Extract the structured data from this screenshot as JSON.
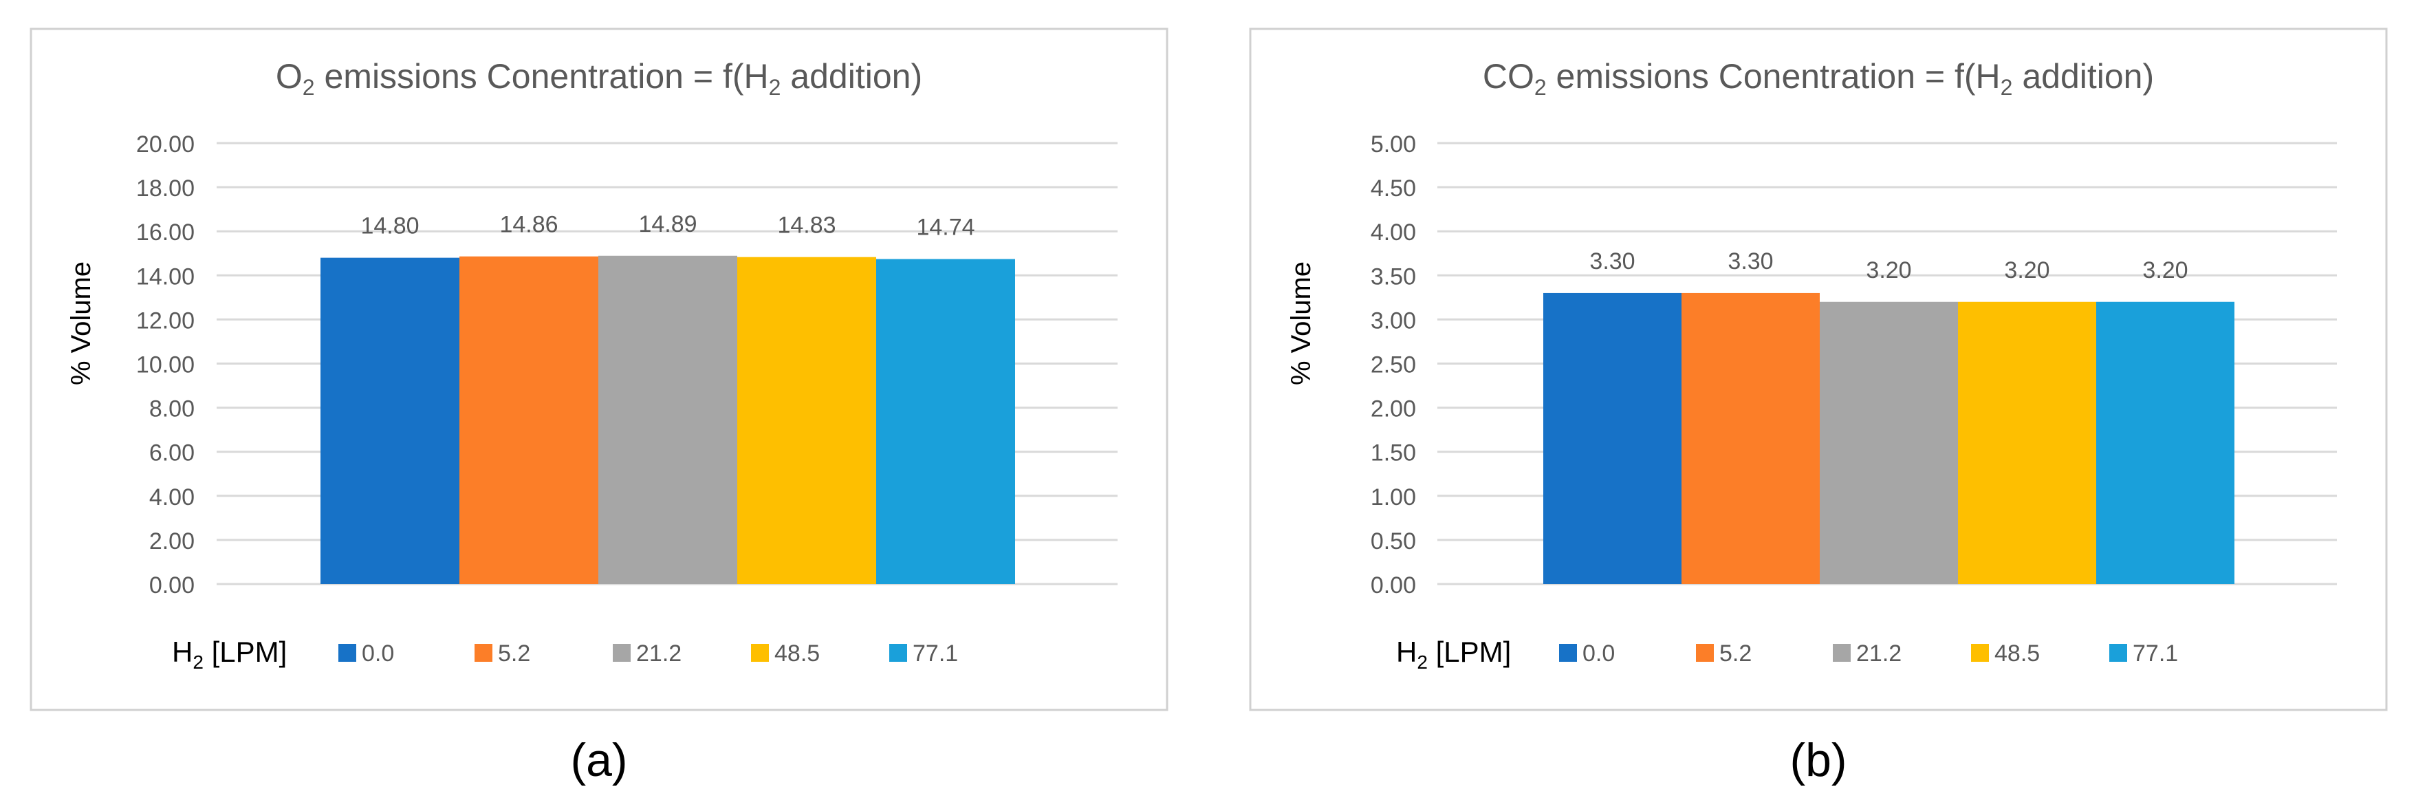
{
  "chart_data": [
    {
      "type": "bar",
      "panel_label": "(a)",
      "title": {
        "prefix": "O",
        "sub": "2",
        "middle": " emissions Conentration = f(H",
        "sub2": "2",
        "suffix": " addition)"
      },
      "ylabel": "% Volume",
      "xlabel": "",
      "ylim": [
        0,
        20
      ],
      "ytick_step": 2,
      "ytick_labels": [
        "0.00",
        "2.00",
        "4.00",
        "6.00",
        "8.00",
        "10.00",
        "12.00",
        "14.00",
        "16.00",
        "18.00",
        "20.00"
      ],
      "grid": true,
      "legend": {
        "placement": "bottom",
        "title_prefix": "H",
        "title_sub": "2",
        "title_suffix": " [LPM]"
      },
      "series": [
        {
          "name": "0.0",
          "values": [
            14.8
          ],
          "label": "14.80",
          "color": "#1772C7"
        },
        {
          "name": "5.2",
          "values": [
            14.86
          ],
          "label": "14.86",
          "color": "#FC7E28"
        },
        {
          "name": "21.2",
          "values": [
            14.89
          ],
          "label": "14.89",
          "color": "#A6A6A6"
        },
        {
          "name": "48.5",
          "values": [
            14.83
          ],
          "label": "14.83",
          "color": "#FEBF00"
        },
        {
          "name": "77.1",
          "values": [
            14.74
          ],
          "label": "14.74",
          "color": "#1AA0DA"
        }
      ]
    },
    {
      "type": "bar",
      "panel_label": "(b)",
      "title": {
        "prefix": "CO",
        "sub": "2",
        "middle": " emissions Conentration = f(H",
        "sub2": "2",
        "suffix": " addition)"
      },
      "ylabel": "% Volume",
      "xlabel": "",
      "ylim": [
        0,
        5
      ],
      "ytick_step": 0.5,
      "ytick_labels": [
        "0.00",
        "0.50",
        "1.00",
        "1.50",
        "2.00",
        "2.50",
        "3.00",
        "3.50",
        "4.00",
        "4.50",
        "5.00"
      ],
      "grid": true,
      "legend": {
        "placement": "bottom",
        "title_prefix": "H",
        "title_sub": "2",
        "title_suffix": " [LPM]"
      },
      "series": [
        {
          "name": "0.0",
          "values": [
            3.3
          ],
          "label": "3.30",
          "color": "#1772C7"
        },
        {
          "name": "5.2",
          "values": [
            3.3
          ],
          "label": "3.30",
          "color": "#FC7E28"
        },
        {
          "name": "21.2",
          "values": [
            3.2
          ],
          "label": "3.20",
          "color": "#A6A6A6"
        },
        {
          "name": "48.5",
          "values": [
            3.2
          ],
          "label": "3.20",
          "color": "#FEBF00"
        },
        {
          "name": "77.1",
          "values": [
            3.2
          ],
          "label": "3.20",
          "color": "#1AA0DA"
        }
      ]
    }
  ],
  "colors": {
    "grid": "#D9D9D9",
    "frame": "#D0D0D0",
    "text": "#595959",
    "panel_label": "#000000"
  }
}
